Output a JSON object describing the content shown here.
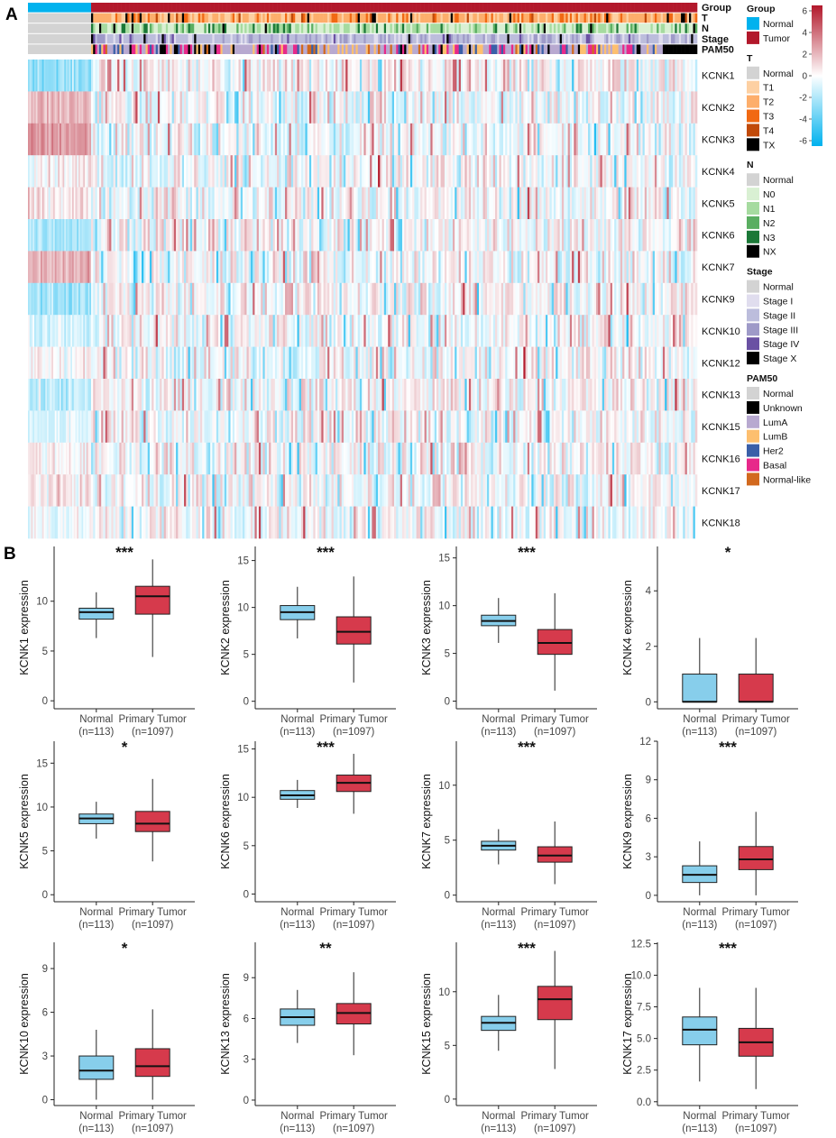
{
  "panels": {
    "a": "A",
    "b": "B"
  },
  "colors": {
    "normal_box": "#87CEEB",
    "tumor_box": "#D63A4C",
    "heat_pos": "#B2182B",
    "heat_mid": "#FFFFFF",
    "heat_neg": "#00B2EE"
  },
  "heatmap": {
    "annotation_rows": [
      "Group",
      "T",
      "N",
      "Stage",
      "PAM50"
    ],
    "genes": [
      "KCNK1",
      "KCNK2",
      "KCNK3",
      "KCNK4",
      "KCNK5",
      "KCNK6",
      "KCNK7",
      "KCNK9",
      "KCNK10",
      "KCNK12",
      "KCNK13",
      "KCNK15",
      "KCNK16",
      "KCNK17",
      "KCNK18"
    ],
    "colorbar": {
      "ticks": [
        6,
        4,
        2,
        0,
        -2,
        -4,
        -6
      ],
      "range": [
        -6.5,
        6.5
      ]
    },
    "legend": [
      {
        "title": "Group",
        "items": [
          {
            "label": "Normal",
            "color": "#00B2EE"
          },
          {
            "label": "Tumor",
            "color": "#B2182B"
          }
        ]
      },
      {
        "title": "T",
        "items": [
          {
            "label": "Normal",
            "color": "#D3D3D3"
          },
          {
            "label": "T1",
            "color": "#FDD0A2"
          },
          {
            "label": "T2",
            "color": "#FDAE6B"
          },
          {
            "label": "T3",
            "color": "#F16913"
          },
          {
            "label": "T4",
            "color": "#C14A09"
          },
          {
            "label": "TX",
            "color": "#000000"
          }
        ]
      },
      {
        "title": "N",
        "items": [
          {
            "label": "Normal",
            "color": "#D3D3D3"
          },
          {
            "label": "N0",
            "color": "#D9F0D3"
          },
          {
            "label": "N1",
            "color": "#A6DBA0"
          },
          {
            "label": "N2",
            "color": "#5AAE61"
          },
          {
            "label": "N3",
            "color": "#1B7837"
          },
          {
            "label": "NX",
            "color": "#000000"
          }
        ]
      },
      {
        "title": "Stage",
        "items": [
          {
            "label": "Normal",
            "color": "#D3D3D3"
          },
          {
            "label": "Stage I",
            "color": "#E0DDEE"
          },
          {
            "label": "Stage II",
            "color": "#BCBDDC"
          },
          {
            "label": "Stage III",
            "color": "#9E9AC8"
          },
          {
            "label": "Stage IV",
            "color": "#6A51A3"
          },
          {
            "label": "Stage X",
            "color": "#000000"
          }
        ]
      },
      {
        "title": "PAM50",
        "items": [
          {
            "label": "Normal",
            "color": "#D3D3D3"
          },
          {
            "label": "Unknown",
            "color": "#000000"
          },
          {
            "label": "LumA",
            "color": "#B8A9D0"
          },
          {
            "label": "LumB",
            "color": "#FDBF6F"
          },
          {
            "label": "Her2",
            "color": "#3A5FA8"
          },
          {
            "label": "Basal",
            "color": "#E7298A"
          },
          {
            "label": "Normal-like",
            "color": "#D2691E"
          }
        ]
      }
    ]
  },
  "chart_data": [
    {
      "type": "box",
      "gene": "KCNK1",
      "ylabel": "KCNK1 expression",
      "significance": "***",
      "ylim": [
        -0.8,
        15.5
      ],
      "yticks": [
        0,
        5,
        10
      ],
      "categories": [
        {
          "name": "Normal",
          "n": "(n=113)"
        },
        {
          "name": "Primary Tumor",
          "n": "(n=1097)"
        }
      ],
      "series": [
        {
          "name": "Normal",
          "whisker_low": 6.3,
          "q1": 8.2,
          "median": 8.9,
          "q3": 9.3,
          "whisker_high": 10.9
        },
        {
          "name": "Primary Tumor",
          "whisker_low": 4.4,
          "q1": 8.7,
          "median": 10.5,
          "q3": 11.5,
          "whisker_high": 14.2
        }
      ]
    },
    {
      "type": "box",
      "gene": "KCNK2",
      "ylabel": "KCNK2 expression",
      "significance": "***",
      "ylim": [
        -0.8,
        16.5
      ],
      "yticks": [
        0,
        5,
        10,
        15
      ],
      "categories": [
        {
          "name": "Normal",
          "n": "(n=113)"
        },
        {
          "name": "Primary Tumor",
          "n": "(n=1097)"
        }
      ],
      "series": [
        {
          "name": "Normal",
          "whisker_low": 6.7,
          "q1": 8.7,
          "median": 9.5,
          "q3": 10.2,
          "whisker_high": 12.2
        },
        {
          "name": "Primary Tumor",
          "whisker_low": 2.0,
          "q1": 6.1,
          "median": 7.4,
          "q3": 9.0,
          "whisker_high": 13.3
        }
      ]
    },
    {
      "type": "box",
      "gene": "KCNK3",
      "ylabel": "KCNK3 expression",
      "significance": "***",
      "ylim": [
        -0.8,
        16.2
      ],
      "yticks": [
        0,
        5,
        10,
        15
      ],
      "categories": [
        {
          "name": "Normal",
          "n": "(n=113)"
        },
        {
          "name": "Primary Tumor",
          "n": "(n=1097)"
        }
      ],
      "series": [
        {
          "name": "Normal",
          "whisker_low": 6.1,
          "q1": 7.9,
          "median": 8.4,
          "q3": 9.0,
          "whisker_high": 10.8
        },
        {
          "name": "Primary Tumor",
          "whisker_low": 1.1,
          "q1": 4.9,
          "median": 6.1,
          "q3": 7.5,
          "whisker_high": 11.3
        }
      ]
    },
    {
      "type": "box",
      "gene": "KCNK4",
      "ylabel": "KCNK4 expression",
      "significance": "*",
      "ylim": [
        -0.25,
        5.6
      ],
      "yticks": [
        0,
        2,
        4
      ],
      "categories": [
        {
          "name": "Normal",
          "n": "(n=113)"
        },
        {
          "name": "Primary Tumor",
          "n": "(n=1097)"
        }
      ],
      "series": [
        {
          "name": "Normal",
          "whisker_low": 0.0,
          "q1": 0.0,
          "median": 0.0,
          "q3": 1.0,
          "whisker_high": 2.3
        },
        {
          "name": "Primary Tumor",
          "whisker_low": 0.0,
          "q1": 0.0,
          "median": 0.0,
          "q3": 1.0,
          "whisker_high": 2.3
        }
      ]
    },
    {
      "type": "box",
      "gene": "KCNK5",
      "ylabel": "KCNK5 expression",
      "significance": "*",
      "ylim": [
        -0.8,
        17.5
      ],
      "yticks": [
        0,
        5,
        10,
        15
      ],
      "categories": [
        {
          "name": "Normal",
          "n": "(n=113)"
        },
        {
          "name": "Primary Tumor",
          "n": "(n=1097)"
        }
      ],
      "series": [
        {
          "name": "Normal",
          "whisker_low": 6.4,
          "q1": 8.1,
          "median": 8.7,
          "q3": 9.2,
          "whisker_high": 10.6
        },
        {
          "name": "Primary Tumor",
          "whisker_low": 3.8,
          "q1": 7.2,
          "median": 8.1,
          "q3": 9.5,
          "whisker_high": 13.2
        }
      ]
    },
    {
      "type": "box",
      "gene": "KCNK6",
      "ylabel": "KCNK6 expression",
      "significance": "***",
      "ylim": [
        -0.8,
        15.8
      ],
      "yticks": [
        0,
        5,
        10,
        15
      ],
      "categories": [
        {
          "name": "Normal",
          "n": "(n=113)"
        },
        {
          "name": "Primary Tumor",
          "n": "(n=1097)"
        }
      ],
      "series": [
        {
          "name": "Normal",
          "whisker_low": 8.9,
          "q1": 9.8,
          "median": 10.2,
          "q3": 10.7,
          "whisker_high": 11.8
        },
        {
          "name": "Primary Tumor",
          "whisker_low": 8.3,
          "q1": 10.6,
          "median": 11.5,
          "q3": 12.3,
          "whisker_high": 14.5
        }
      ]
    },
    {
      "type": "box",
      "gene": "KCNK7",
      "ylabel": "KCNK7 expression",
      "significance": "***",
      "ylim": [
        -0.6,
        14.0
      ],
      "yticks": [
        0,
        5,
        10
      ],
      "categories": [
        {
          "name": "Normal",
          "n": "(n=113)"
        },
        {
          "name": "Primary Tumor",
          "n": "(n=1097)"
        }
      ],
      "series": [
        {
          "name": "Normal",
          "whisker_low": 2.8,
          "q1": 4.1,
          "median": 4.5,
          "q3": 4.9,
          "whisker_high": 6.0
        },
        {
          "name": "Primary Tumor",
          "whisker_low": 1.0,
          "q1": 3.0,
          "median": 3.6,
          "q3": 4.4,
          "whisker_high": 6.7
        }
      ]
    },
    {
      "type": "box",
      "gene": "KCNK9",
      "ylabel": "KCNK9 expression",
      "significance": "***",
      "ylim": [
        -0.5,
        12.0
      ],
      "yticks": [
        0,
        3,
        6,
        9,
        12
      ],
      "categories": [
        {
          "name": "Normal",
          "n": "(n=113)"
        },
        {
          "name": "Primary Tumor",
          "n": "(n=1097)"
        }
      ],
      "series": [
        {
          "name": "Normal",
          "whisker_low": 0.0,
          "q1": 1.0,
          "median": 1.6,
          "q3": 2.3,
          "whisker_high": 4.2
        },
        {
          "name": "Primary Tumor",
          "whisker_low": 0.0,
          "q1": 2.0,
          "median": 2.8,
          "q3": 3.8,
          "whisker_high": 6.5
        }
      ]
    },
    {
      "type": "box",
      "gene": "KCNK10",
      "ylabel": "KCNK10 expression",
      "significance": "*",
      "ylim": [
        -0.4,
        10.8
      ],
      "yticks": [
        0,
        3,
        6,
        9
      ],
      "categories": [
        {
          "name": "Normal",
          "n": "(n=113)"
        },
        {
          "name": "Primary Tumor",
          "n": "(n=1097)"
        }
      ],
      "series": [
        {
          "name": "Normal",
          "whisker_low": 0.0,
          "q1": 1.4,
          "median": 2.0,
          "q3": 3.0,
          "whisker_high": 4.8
        },
        {
          "name": "Primary Tumor",
          "whisker_low": 0.0,
          "q1": 1.6,
          "median": 2.3,
          "q3": 3.5,
          "whisker_high": 6.2
        }
      ]
    },
    {
      "type": "box",
      "gene": "KCNK13",
      "ylabel": "KCNK13 expression",
      "significance": "**",
      "ylim": [
        -0.4,
        11.6
      ],
      "yticks": [
        0,
        3,
        6,
        9
      ],
      "categories": [
        {
          "name": "Normal",
          "n": "(n=113)"
        },
        {
          "name": "Primary Tumor",
          "n": "(n=1097)"
        }
      ],
      "series": [
        {
          "name": "Normal",
          "whisker_low": 4.2,
          "q1": 5.5,
          "median": 6.1,
          "q3": 6.7,
          "whisker_high": 8.1
        },
        {
          "name": "Primary Tumor",
          "whisker_low": 3.3,
          "q1": 5.6,
          "median": 6.4,
          "q3": 7.1,
          "whisker_high": 9.4
        }
      ]
    },
    {
      "type": "box",
      "gene": "KCNK15",
      "ylabel": "KCNK15 expression",
      "significance": "***",
      "ylim": [
        -0.6,
        14.6
      ],
      "yticks": [
        0,
        5,
        10
      ],
      "categories": [
        {
          "name": "Normal",
          "n": "(n=113)"
        },
        {
          "name": "Primary Tumor",
          "n": "(n=1097)"
        }
      ],
      "series": [
        {
          "name": "Normal",
          "whisker_low": 4.5,
          "q1": 6.4,
          "median": 7.1,
          "q3": 7.7,
          "whisker_high": 9.7
        },
        {
          "name": "Primary Tumor",
          "whisker_low": 2.8,
          "q1": 7.4,
          "median": 9.3,
          "q3": 10.5,
          "whisker_high": 13.8
        }
      ]
    },
    {
      "type": "box",
      "gene": "KCNK17",
      "ylabel": "KCNK17 expression",
      "significance": "***",
      "ylim": [
        -0.3,
        12.6
      ],
      "yticks": [
        0.0,
        2.5,
        5.0,
        7.5,
        10.0,
        12.5
      ],
      "tick_decimals": 1,
      "categories": [
        {
          "name": "Normal",
          "n": "(n=113)"
        },
        {
          "name": "Primary Tumor",
          "n": "(n=1097)"
        }
      ],
      "series": [
        {
          "name": "Normal",
          "whisker_low": 1.6,
          "q1": 4.5,
          "median": 5.7,
          "q3": 6.7,
          "whisker_high": 9.0
        },
        {
          "name": "Primary Tumor",
          "whisker_low": 1.0,
          "q1": 3.6,
          "median": 4.7,
          "q3": 5.8,
          "whisker_high": 9.0
        }
      ]
    }
  ]
}
